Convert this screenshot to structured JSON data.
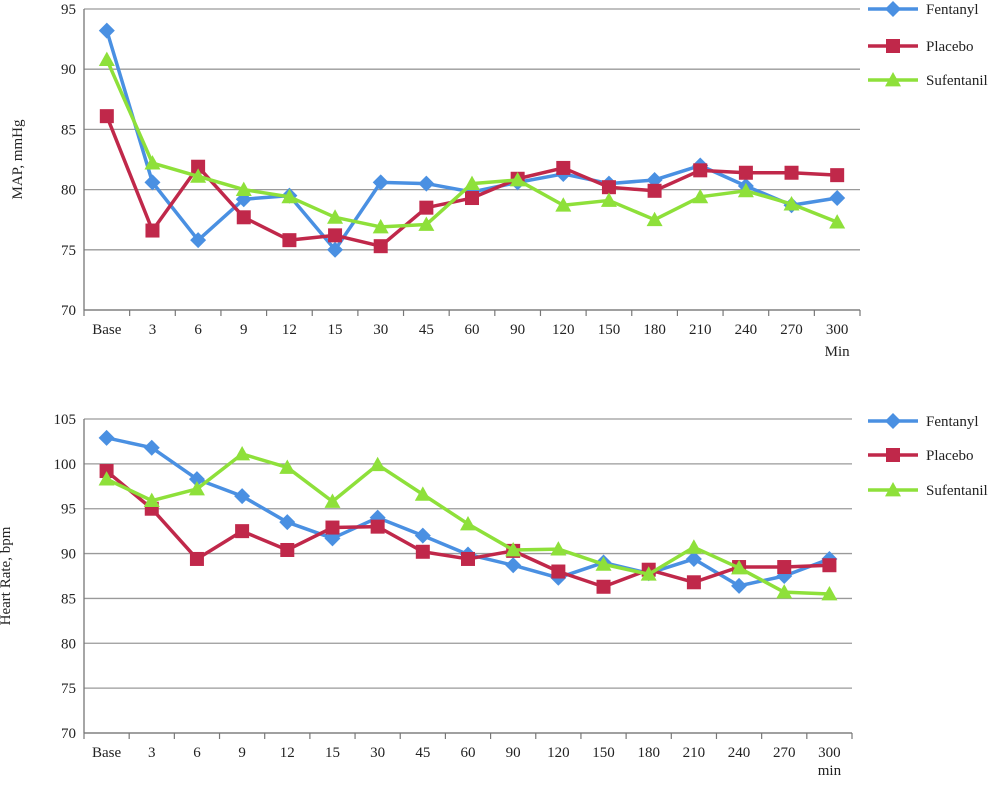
{
  "chart_data": [
    {
      "type": "line",
      "ylabel": "MAP, mmHg",
      "x_unit_label": "Min",
      "categories": [
        "Base",
        "3",
        "6",
        "9",
        "12",
        "15",
        "30",
        "45",
        "60",
        "90",
        "120",
        "150",
        "180",
        "210",
        "240",
        "270",
        "300"
      ],
      "ylim": [
        70,
        95
      ],
      "yticks": [
        70,
        75,
        80,
        85,
        90,
        95
      ],
      "grid": true,
      "legend": "right",
      "series": [
        {
          "name": "Fentanyl",
          "marker": "diamond",
          "color": "#4a90e2",
          "values": [
            93.2,
            80.6,
            75.8,
            79.2,
            79.5,
            75.0,
            80.6,
            80.5,
            79.8,
            80.6,
            81.3,
            80.5,
            80.8,
            82.0,
            80.3,
            78.7,
            79.3
          ]
        },
        {
          "name": "Placebo",
          "marker": "square",
          "color": "#c0284a",
          "values": [
            86.1,
            76.6,
            81.9,
            77.7,
            75.8,
            76.2,
            75.3,
            78.5,
            79.3,
            80.9,
            81.8,
            80.2,
            79.9,
            81.6,
            81.4,
            81.4,
            81.2
          ]
        },
        {
          "name": "Sufentanil",
          "marker": "triangle",
          "color": "#8ee03a",
          "values": [
            90.8,
            82.2,
            81.1,
            80.0,
            79.4,
            77.7,
            76.9,
            77.1,
            80.5,
            80.8,
            78.7,
            79.1,
            77.5,
            79.4,
            79.9,
            78.8,
            77.3
          ]
        }
      ]
    },
    {
      "type": "line",
      "ylabel": "Heart Rate, bpm",
      "x_unit_label": "min",
      "categories": [
        "Base",
        "3",
        "6",
        "9",
        "12",
        "15",
        "30",
        "45",
        "60",
        "90",
        "120",
        "150",
        "180",
        "210",
        "240",
        "270",
        "300"
      ],
      "ylim": [
        70,
        105
      ],
      "yticks": [
        70,
        75,
        80,
        85,
        90,
        95,
        100,
        105
      ],
      "grid": true,
      "legend": "right",
      "series": [
        {
          "name": "Fentanyl",
          "marker": "diamond",
          "color": "#4a90e2",
          "values": [
            102.9,
            101.8,
            98.3,
            96.4,
            93.5,
            91.7,
            94.0,
            92.0,
            89.9,
            88.7,
            87.3,
            89.0,
            87.8,
            89.4,
            86.4,
            87.5,
            89.4
          ]
        },
        {
          "name": "Placebo",
          "marker": "square",
          "color": "#c0284a",
          "values": [
            99.2,
            95.0,
            89.4,
            92.5,
            90.4,
            92.9,
            93.0,
            90.2,
            89.4,
            90.3,
            88.0,
            86.3,
            88.2,
            86.8,
            88.5,
            88.5,
            88.7
          ]
        },
        {
          "name": "Sufentanil",
          "marker": "triangle",
          "color": "#8ee03a",
          "values": [
            98.3,
            95.9,
            97.2,
            101.1,
            99.6,
            95.8,
            99.9,
            96.6,
            93.3,
            90.4,
            90.5,
            88.8,
            87.7,
            90.7,
            88.4,
            85.7,
            85.5
          ]
        }
      ]
    }
  ]
}
